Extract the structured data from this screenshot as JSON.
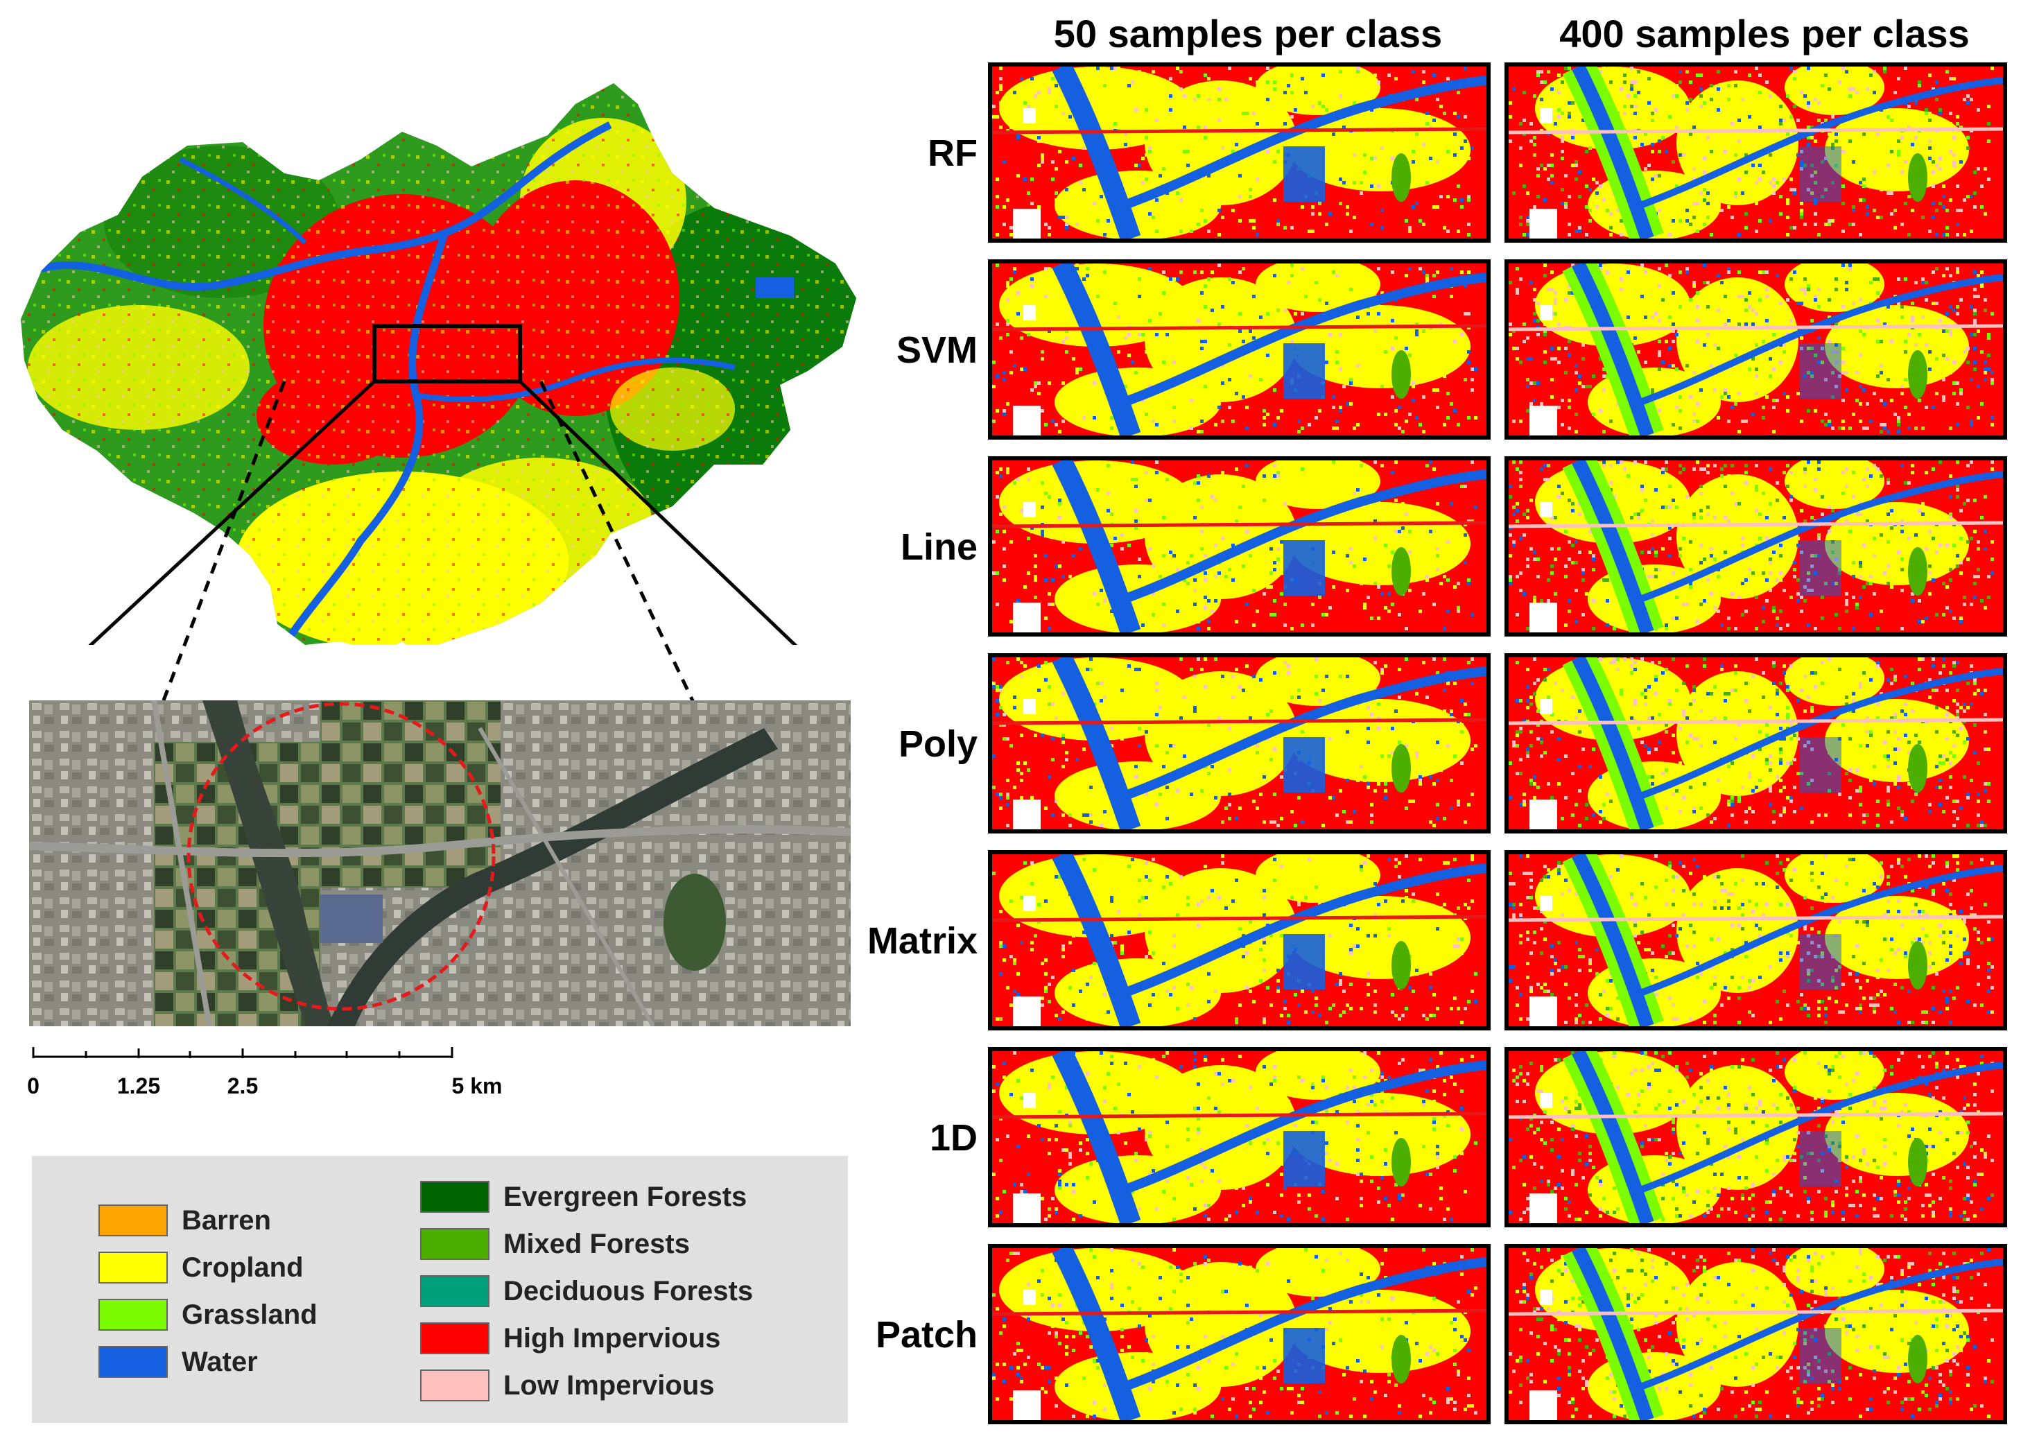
{
  "columns": {
    "left": "50 samples per class",
    "right": "400 samples per class"
  },
  "rows": [
    {
      "label": "RF"
    },
    {
      "label": "SVM"
    },
    {
      "label": "Line"
    },
    {
      "label": "Poly"
    },
    {
      "label": "Matrix"
    },
    {
      "label": "1D"
    },
    {
      "label": "Patch"
    }
  ],
  "scale_bar": {
    "ticks": [
      "0",
      "1.25",
      "2.5",
      "5 km"
    ]
  },
  "legend": {
    "left": [
      {
        "label": "Barren",
        "color": "#ffa500"
      },
      {
        "label": "Cropland",
        "color": "#ffff00"
      },
      {
        "label": "Grassland",
        "color": "#7cfc00"
      },
      {
        "label": "Water",
        "color": "#1560e0"
      }
    ],
    "right": [
      {
        "label": "Evergreen Forests",
        "color": "#006400"
      },
      {
        "label": "Mixed Forests",
        "color": "#4caf00"
      },
      {
        "label": "Deciduous Forests",
        "color": "#00a07a"
      },
      {
        "label": "High Impervious",
        "color": "#ff0000"
      },
      {
        "label": "Low Impervious",
        "color": "#ffc0c0"
      }
    ]
  }
}
